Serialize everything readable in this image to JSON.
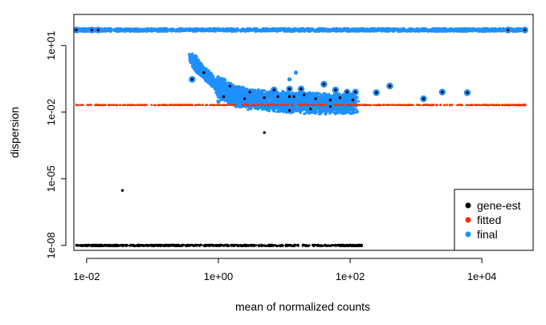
{
  "chart_data": {
    "type": "scatter",
    "title": "",
    "xlabel": "mean of normalized counts",
    "ylabel": "dispersion",
    "x_scale": "log10",
    "y_scale": "log10",
    "xlim": [
      0.0064,
      60000
    ],
    "ylim": [
      6e-09,
      250
    ],
    "grid": false,
    "x_ticks": [
      {
        "value": 0.01,
        "label": "1e-02"
      },
      {
        "value": 1,
        "label": "1e+00"
      },
      {
        "value": 100,
        "label": "1e+02"
      },
      {
        "value": 10000,
        "label": "1e+04"
      }
    ],
    "y_ticks": [
      {
        "value": 1e-08,
        "label": "1e-08"
      },
      {
        "value": 1e-05,
        "label": "1e-05"
      },
      {
        "value": 0.01,
        "label": "1e-02"
      },
      {
        "value": 10,
        "label": "1e+01"
      }
    ],
    "legend": {
      "position": "bottom-right",
      "entries": [
        {
          "label": "gene-est",
          "color": "#000000"
        },
        {
          "label": "fitted",
          "color": "#ff2a00"
        },
        {
          "label": "final",
          "color": "#1e90ff"
        }
      ]
    },
    "series": [
      {
        "name": "gene-est",
        "color": "#000000",
        "points": [
          [
            0.007,
            1e-08
          ],
          [
            0.012,
            1e-08
          ],
          [
            0.015,
            1e-08
          ],
          [
            0.02,
            1e-08
          ],
          [
            0.03,
            1e-08
          ],
          [
            0.05,
            1e-08
          ],
          [
            0.08,
            1e-08
          ],
          [
            0.12,
            1e-08
          ],
          [
            0.2,
            1e-08
          ],
          [
            0.35,
            1e-08
          ],
          [
            0.6,
            1e-08
          ],
          [
            1.0,
            1e-08
          ],
          [
            2.0,
            1e-08
          ],
          [
            4.0,
            1e-08
          ],
          [
            8.0,
            1e-08
          ],
          [
            15,
            1e-08
          ],
          [
            30,
            1e-08
          ],
          [
            60,
            1e-08
          ],
          [
            90,
            1e-08
          ],
          [
            120,
            1e-08
          ],
          [
            150,
            1e-08
          ],
          [
            0.035,
            3e-06
          ],
          [
            5.0,
            0.0012
          ],
          [
            0.4,
            0.3
          ],
          [
            1.2,
            0.05
          ],
          [
            2.5,
            0.04
          ],
          [
            5,
            0.045
          ],
          [
            8,
            0.05
          ],
          [
            12,
            0.05
          ],
          [
            14,
            0.05
          ],
          [
            20,
            0.06
          ],
          [
            30,
            0.04
          ],
          [
            50,
            0.035
          ],
          [
            70,
            0.045
          ],
          [
            110,
            0.035
          ],
          [
            3,
            0.08
          ],
          [
            7,
            0.1
          ],
          [
            12,
            0.11
          ],
          [
            18,
            0.11
          ],
          [
            40,
            0.18
          ],
          [
            60,
            0.1
          ],
          [
            90,
            0.08
          ],
          [
            120,
            0.08
          ],
          [
            250,
            0.075
          ],
          [
            400,
            0.15
          ],
          [
            1300,
            0.04
          ],
          [
            2500,
            0.08
          ],
          [
            6000,
            0.075
          ],
          [
            12,
            0.012
          ],
          [
            25,
            0.014
          ],
          [
            50,
            0.018
          ],
          [
            0.6,
            0.6
          ],
          [
            1.5,
            0.15
          ]
        ]
      },
      {
        "name": "fitted",
        "color": "#ff2a00",
        "points": [
          [
            0.007,
            0.021
          ],
          [
            0.03,
            0.021
          ],
          [
            0.1,
            0.021
          ],
          [
            0.3,
            0.021
          ],
          [
            1,
            0.021
          ],
          [
            3,
            0.021
          ],
          [
            10,
            0.021
          ],
          [
            30,
            0.021
          ],
          [
            100,
            0.021
          ],
          [
            300,
            0.021
          ],
          [
            1000,
            0.021
          ],
          [
            3000,
            0.021
          ],
          [
            10000,
            0.021
          ],
          [
            25000,
            0.021
          ],
          [
            45000,
            0.021
          ]
        ]
      },
      {
        "name": "final",
        "color": "#1e90ff",
        "points": [
          [
            0.007,
            50
          ],
          [
            0.01,
            50
          ],
          [
            0.012,
            50
          ],
          [
            0.02,
            50
          ],
          [
            0.05,
            50
          ],
          [
            0.1,
            50
          ],
          [
            0.3,
            50
          ],
          [
            1,
            50
          ],
          [
            3,
            50
          ],
          [
            10,
            50
          ],
          [
            30,
            50
          ],
          [
            100,
            50
          ],
          [
            300,
            50
          ],
          [
            1000,
            50
          ],
          [
            3000,
            50
          ],
          [
            10000,
            50
          ],
          [
            25000,
            50
          ],
          [
            45000,
            50
          ],
          [
            0.4,
            3.0
          ],
          [
            0.45,
            1.5
          ],
          [
            0.5,
            1.0
          ],
          [
            0.6,
            0.6
          ],
          [
            0.7,
            0.4
          ],
          [
            0.8,
            0.25
          ],
          [
            1.0,
            0.15
          ],
          [
            1.2,
            0.1
          ],
          [
            1.5,
            0.07
          ],
          [
            2.0,
            0.05
          ],
          [
            3.0,
            0.04
          ],
          [
            5.0,
            0.035
          ],
          [
            8,
            0.03
          ],
          [
            12,
            0.028
          ],
          [
            20,
            0.026
          ],
          [
            30,
            0.025
          ],
          [
            50,
            0.024
          ],
          [
            80,
            0.023
          ],
          [
            120,
            0.023
          ],
          [
            1.0,
            0.03
          ],
          [
            2.0,
            0.02
          ],
          [
            3.0,
            0.06
          ],
          [
            4.0,
            0.015
          ],
          [
            6,
            0.05
          ],
          [
            9,
            0.012
          ],
          [
            15,
            0.02
          ],
          [
            25,
            0.04
          ],
          [
            40,
            0.015
          ],
          [
            12,
            0.3
          ],
          [
            15,
            0.6
          ],
          [
            3,
            0.08
          ],
          [
            7,
            0.1
          ],
          [
            12,
            0.11
          ],
          [
            18,
            0.11
          ],
          [
            40,
            0.18
          ],
          [
            60,
            0.1
          ],
          [
            90,
            0.08
          ],
          [
            120,
            0.08
          ],
          [
            250,
            0.075
          ],
          [
            400,
            0.15
          ],
          [
            1300,
            0.04
          ],
          [
            2500,
            0.08
          ],
          [
            6000,
            0.075
          ]
        ]
      }
    ]
  }
}
